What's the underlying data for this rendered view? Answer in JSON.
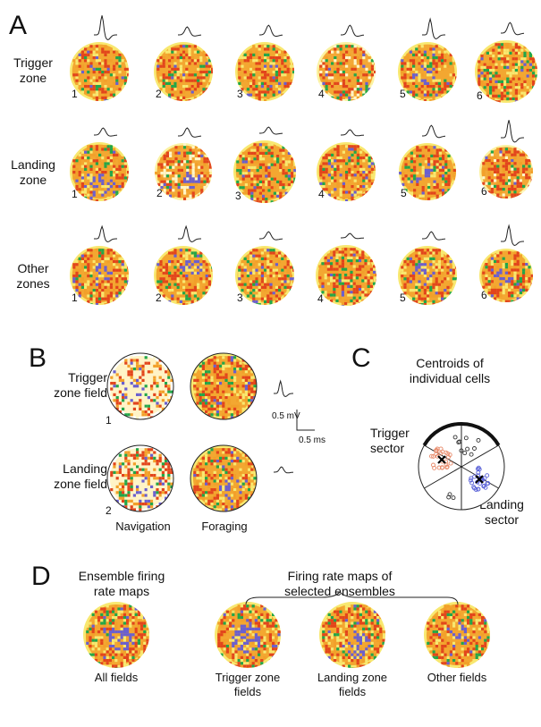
{
  "panels": {
    "A": {
      "label": "A",
      "rows": [
        {
          "label": "Trigger\nzone",
          "cells": [
            "1",
            "2",
            "3",
            "4",
            "5",
            "6"
          ]
        },
        {
          "label": "Landing\nzone",
          "cells": [
            "1",
            "2",
            "3",
            "4",
            "5",
            "6"
          ]
        },
        {
          "label": "Other\nzones",
          "cells": [
            "1",
            "2",
            "3",
            "4",
            "5",
            "6"
          ]
        }
      ]
    },
    "B": {
      "label": "B",
      "row1_label": "Trigger\nzone field",
      "row2_label": "Landing\nzone field",
      "num1": "1",
      "num2": "2",
      "col1": "Navigation",
      "col2": "Foraging",
      "scale_mv": "0.5 mV",
      "scale_ms": "0.5 ms"
    },
    "C": {
      "label": "C",
      "title": "Centroids of\nindividual cells",
      "trigger": "Trigger\nsector",
      "landing": "Landing\nsector"
    },
    "D": {
      "label": "D",
      "left_title": "Ensemble firing\nrate maps",
      "right_title": "Firing rate maps of\nselected ensembles",
      "captions": [
        "All fields",
        "Trigger zone\nfields",
        "Landing zone\nfields",
        "Other fields"
      ]
    }
  },
  "colors": {
    "low": "#f8e870",
    "mid": "#f2a02a",
    "high": "#e2451c",
    "green": "#22a64a",
    "purple": "#6a5fcf",
    "trigger_dots": "#e88a6a",
    "landing_dots": "#5a62d8"
  }
}
